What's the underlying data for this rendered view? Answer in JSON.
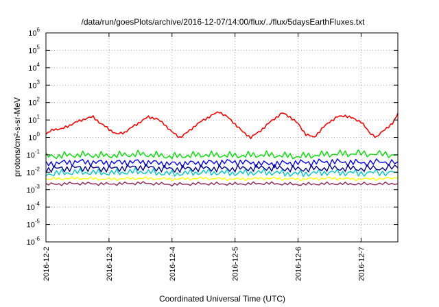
{
  "chart_data": {
    "type": "line",
    "title": "/data/run/goesPlots/archive/2016-12-07/14:00/flux/../flux/5daysEarthFluxes.txt",
    "xlabel": "Coordinated Universal Time (UTC)",
    "ylabel": "protons/cm²-s-sr-MeV",
    "yscale": "log",
    "ylim": [
      1e-06,
      1000000.0
    ],
    "xlim": [
      "2016-12-02T00:00",
      "2016-12-07T14:00"
    ],
    "grid": true,
    "yticks": [
      {
        "value": 1e-06,
        "base": "10",
        "exp": "-6"
      },
      {
        "value": 1e-05,
        "base": "10",
        "exp": "-5"
      },
      {
        "value": 0.0001,
        "base": "10",
        "exp": "-4"
      },
      {
        "value": 0.001,
        "base": "10",
        "exp": "-3"
      },
      {
        "value": 0.01,
        "base": "10",
        "exp": "-2"
      },
      {
        "value": 0.1,
        "base": "10",
        "exp": "-1"
      },
      {
        "value": 1,
        "base": "10",
        "exp": "0"
      },
      {
        "value": 10,
        "base": "10",
        "exp": "1"
      },
      {
        "value": 100,
        "base": "10",
        "exp": "2"
      },
      {
        "value": 1000,
        "base": "10",
        "exp": "3"
      },
      {
        "value": 10000,
        "base": "10",
        "exp": "4"
      },
      {
        "value": 100000,
        "base": "10",
        "exp": "5"
      },
      {
        "value": 1000000,
        "base": "10",
        "exp": "6"
      }
    ],
    "xticks": [
      "2016-12-2",
      "2016-12-3",
      "2016-12-4",
      "2016-12-5",
      "2016-12-6",
      "2016-12-7"
    ],
    "series": [
      {
        "color": "#ff0000",
        "x": [
          "2016-12-02T00:00",
          "2016-12-02T03:00",
          "2016-12-02T06:00",
          "2016-12-02T09:00",
          "2016-12-02T12:00",
          "2016-12-02T15:00",
          "2016-12-02T18:00",
          "2016-12-02T21:00",
          "2016-12-03T00:00",
          "2016-12-03T03:00",
          "2016-12-03T06:00",
          "2016-12-03T09:00",
          "2016-12-03T12:00",
          "2016-12-03T15:00",
          "2016-12-03T18:00",
          "2016-12-03T21:00",
          "2016-12-04T00:00",
          "2016-12-04T03:00",
          "2016-12-04T06:00",
          "2016-12-04T09:00",
          "2016-12-04T12:00",
          "2016-12-04T15:00",
          "2016-12-04T18:00",
          "2016-12-04T21:00",
          "2016-12-05T00:00",
          "2016-12-05T03:00",
          "2016-12-05T06:00",
          "2016-12-05T09:00",
          "2016-12-05T12:00",
          "2016-12-05T15:00",
          "2016-12-05T18:00",
          "2016-12-05T21:00",
          "2016-12-06T00:00",
          "2016-12-06T03:00",
          "2016-12-06T06:00",
          "2016-12-06T09:00",
          "2016-12-06T12:00",
          "2016-12-06T15:00",
          "2016-12-06T18:00",
          "2016-12-06T21:00",
          "2016-12-07T00:00",
          "2016-12-07T03:00",
          "2016-12-07T06:00",
          "2016-12-07T09:00",
          "2016-12-07T12:00",
          "2016-12-07T14:00"
        ],
        "values": [
          1.5,
          3,
          3,
          5,
          8,
          12,
          15,
          6,
          3,
          1.5,
          2,
          4,
          8,
          15,
          12,
          6,
          2,
          1,
          2,
          5,
          10,
          18,
          30,
          15,
          6,
          2,
          1,
          2,
          5,
          12,
          25,
          15,
          6,
          1.5,
          1,
          3,
          8,
          15,
          18,
          12,
          8,
          2,
          1,
          3,
          6,
          25
        ]
      },
      {
        "color": "#00e000",
        "x": [
          "2016-12-02T00:00",
          "2016-12-02T12:00",
          "2016-12-03T00:00",
          "2016-12-03T12:00",
          "2016-12-04T00:00",
          "2016-12-04T12:00",
          "2016-12-05T00:00",
          "2016-12-05T12:00",
          "2016-12-06T00:00",
          "2016-12-06T12:00",
          "2016-12-07T00:00",
          "2016-12-07T14:00"
        ],
        "values": [
          0.08,
          0.1,
          0.09,
          0.11,
          0.08,
          0.1,
          0.09,
          0.1,
          0.08,
          0.11,
          0.12,
          0.1
        ]
      },
      {
        "color": "#0000ff",
        "x": [
          "2016-12-02T00:00",
          "2016-12-02T12:00",
          "2016-12-03T00:00",
          "2016-12-03T12:00",
          "2016-12-04T00:00",
          "2016-12-04T12:00",
          "2016-12-05T00:00",
          "2016-12-05T12:00",
          "2016-12-06T00:00",
          "2016-12-06T12:00",
          "2016-12-07T00:00",
          "2016-12-07T14:00"
        ],
        "values": [
          0.03,
          0.04,
          0.035,
          0.04,
          0.03,
          0.035,
          0.04,
          0.03,
          0.035,
          0.04,
          0.035,
          0.04
        ]
      },
      {
        "color": "#00c8c8",
        "x": [
          "2016-12-02T00:00",
          "2016-12-02T12:00",
          "2016-12-03T00:00",
          "2016-12-03T12:00",
          "2016-12-04T00:00",
          "2016-12-04T12:00",
          "2016-12-05T00:00",
          "2016-12-05T12:00",
          "2016-12-06T00:00",
          "2016-12-06T12:00",
          "2016-12-07T00:00",
          "2016-12-07T14:00"
        ],
        "values": [
          0.008,
          0.01,
          0.009,
          0.011,
          0.008,
          0.01,
          0.009,
          0.01,
          0.008,
          0.01,
          0.009,
          0.01
        ]
      },
      {
        "color": "#00008b",
        "x": [
          "2016-12-02T00:00",
          "2016-12-02T12:00",
          "2016-12-03T00:00",
          "2016-12-03T12:00",
          "2016-12-04T00:00",
          "2016-12-04T12:00",
          "2016-12-05T00:00",
          "2016-12-05T12:00",
          "2016-12-06T00:00",
          "2016-12-06T12:00",
          "2016-12-07T00:00",
          "2016-12-07T14:00"
        ],
        "values": [
          0.015,
          0.018,
          0.016,
          0.02,
          0.015,
          0.017,
          0.016,
          0.018,
          0.015,
          0.017,
          0.016,
          0.018
        ]
      },
      {
        "color": "#ffff00",
        "x": [
          "2016-12-02T00:00",
          "2016-12-02T12:00",
          "2016-12-03T00:00",
          "2016-12-03T12:00",
          "2016-12-04T00:00",
          "2016-12-04T12:00",
          "2016-12-05T00:00",
          "2016-12-05T12:00",
          "2016-12-06T00:00",
          "2016-12-06T12:00",
          "2016-12-07T00:00",
          "2016-12-07T14:00"
        ],
        "values": [
          0.004,
          0.0045,
          0.004,
          0.0045,
          0.004,
          0.0045,
          0.004,
          0.0045,
          0.004,
          0.0045,
          0.004,
          0.0045
        ]
      },
      {
        "color": "#8b2252",
        "x": [
          "2016-12-02T00:00",
          "2016-12-02T12:00",
          "2016-12-03T00:00",
          "2016-12-03T12:00",
          "2016-12-04T00:00",
          "2016-12-04T12:00",
          "2016-12-05T00:00",
          "2016-12-05T12:00",
          "2016-12-06T00:00",
          "2016-12-06T12:00",
          "2016-12-07T00:00",
          "2016-12-07T14:00"
        ],
        "values": [
          0.002,
          0.0023,
          0.0021,
          0.0024,
          0.002,
          0.0022,
          0.0021,
          0.0023,
          0.002,
          0.0022,
          0.0021,
          0.0022
        ]
      }
    ]
  }
}
